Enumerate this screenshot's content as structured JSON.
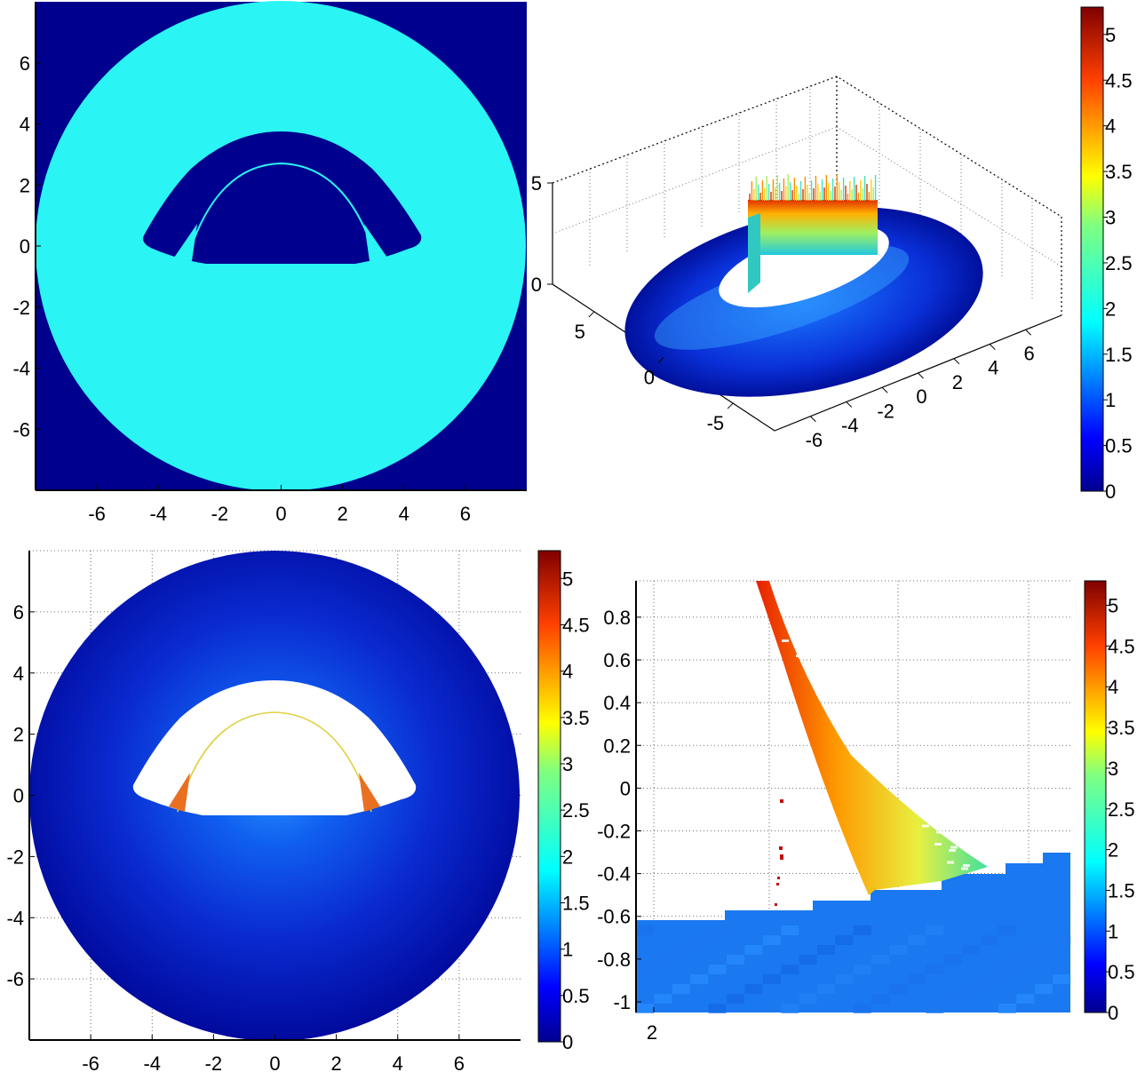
{
  "colors": {
    "navy": "#00008f",
    "cyan": "#2af4f4",
    "blue_field": "#1c3ad8",
    "blue_light": "#2a8cff",
    "jet": [
      "#00008f",
      "#0000ff",
      "#0080ff",
      "#00ffff",
      "#80ff80",
      "#ffff00",
      "#ff8000",
      "#ff0000",
      "#800000"
    ]
  },
  "chart_data": [
    {
      "id": "top_left",
      "type": "heatmap",
      "title": "",
      "xlabel": "",
      "ylabel": "",
      "xlim": [
        -8,
        8
      ],
      "ylim": [
        -8,
        8
      ],
      "xticks": [
        -6,
        -4,
        -2,
        0,
        2,
        4,
        6
      ],
      "yticks": [
        6,
        4,
        2,
        0,
        -2,
        -4,
        -6
      ],
      "grid": false,
      "annulus": {
        "outer_radius": 8,
        "value": 2
      },
      "cavity": {
        "x_range": [
          -4.5,
          4.5
        ],
        "y_range": [
          -0.6,
          3.8
        ],
        "arc_radius": 2.7,
        "value": 0
      },
      "background_value": 0
    },
    {
      "id": "top_right",
      "type": "surface3d",
      "title": "",
      "x_ticks": [
        -6,
        -4,
        -2,
        0,
        2,
        4,
        6
      ],
      "y_ticks": [
        5,
        0,
        -5
      ],
      "z_ticks": [
        0,
        5
      ],
      "z_range": [
        0,
        5
      ],
      "field_range_near_obstacle": [
        2,
        5
      ],
      "grid": true,
      "colorbar": {
        "min": 0,
        "max": 5.3,
        "ticks": [
          0,
          0.5,
          1,
          1.5,
          2,
          2.5,
          3,
          3.5,
          4,
          4.5,
          5
        ]
      }
    },
    {
      "id": "bottom_left",
      "type": "heatmap",
      "title": "",
      "xlim": [
        -8,
        8
      ],
      "ylim": [
        -8,
        8
      ],
      "xticks": [
        -6,
        -4,
        -2,
        0,
        2,
        4,
        6
      ],
      "yticks": [
        6,
        4,
        2,
        0,
        -2,
        -4,
        -6
      ],
      "grid": true,
      "disk": {
        "radius": 8,
        "value_range": [
          0,
          1.2
        ]
      },
      "cavity": {
        "x_range": [
          -4.5,
          4.5
        ],
        "y_range": [
          -0.6,
          3.8
        ],
        "arc_radius": 2.7,
        "arc_value_range": [
          3,
          4.5
        ]
      },
      "colorbar": {
        "min": 0,
        "max": 5.3,
        "ticks": [
          0,
          0.5,
          1,
          1.5,
          2,
          2.5,
          3,
          3.5,
          4,
          4.5,
          5
        ]
      }
    },
    {
      "id": "bottom_right",
      "type": "heatmap",
      "title": "",
      "xticks": [
        2
      ],
      "yticks": [
        0.8,
        0.6,
        0.4,
        0.2,
        0,
        -0.2,
        -0.4,
        -0.6,
        -0.8,
        -1
      ],
      "ylim": [
        -1.05,
        0.97
      ],
      "grid": true,
      "band_value_range": [
        2,
        5
      ],
      "base_value": 1.2,
      "colorbar": {
        "min": 0,
        "max": 5.3,
        "ticks": [
          0,
          0.5,
          1,
          1.5,
          2,
          2.5,
          3,
          3.5,
          4,
          4.5,
          5
        ]
      }
    }
  ],
  "labels": {
    "tl_x": [
      "-6",
      "-4",
      "-2",
      "0",
      "2",
      "4",
      "6"
    ],
    "tl_y": [
      "6",
      "4",
      "2",
      "0",
      "-2",
      "-4",
      "-6"
    ],
    "tr_x": [
      "-6",
      "-4",
      "-2",
      "0",
      "2",
      "4",
      "6"
    ],
    "tr_y": [
      "5",
      "0",
      "-5"
    ],
    "tr_z": [
      "5",
      "0"
    ],
    "cb_top": [
      "5",
      "4.5",
      "4",
      "3.5",
      "3",
      "2.5",
      "2",
      "1.5",
      "1",
      "0.5",
      "0"
    ],
    "bl_x": [
      "-6",
      "-4",
      "-2",
      "0",
      "2",
      "4",
      "6"
    ],
    "bl_y": [
      "6",
      "4",
      "2",
      "0",
      "-2",
      "-4",
      "-6"
    ],
    "cb_bl": [
      "5",
      "4.5",
      "4",
      "3.5",
      "3",
      "2.5",
      "2",
      "1.5",
      "1",
      "0.5",
      "0"
    ],
    "br_x": [
      "2"
    ],
    "br_y": [
      "0.8",
      "0.6",
      "0.4",
      "0.2",
      "0",
      "-0.2",
      "-0.4",
      "-0.6",
      "-0.8",
      "-1"
    ],
    "cb_br": [
      "5",
      "4.5",
      "4",
      "3.5",
      "3",
      "2.5",
      "2",
      "1.5",
      "1",
      "0.5",
      "0"
    ]
  }
}
